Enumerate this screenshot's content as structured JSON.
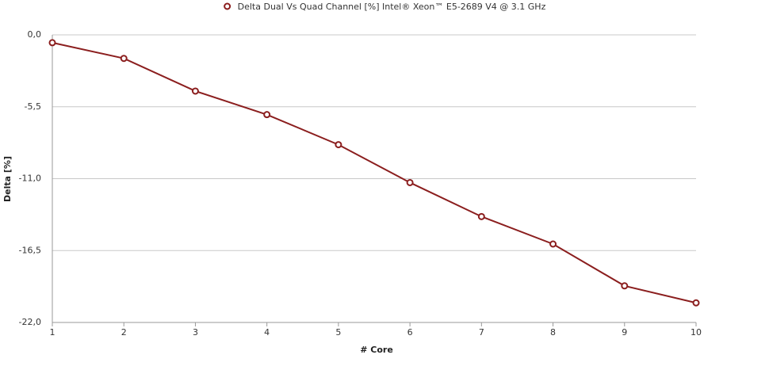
{
  "chart_data": {
    "type": "line",
    "x_label": "# Core",
    "y_label": "Delta [%]",
    "x": [
      1,
      2,
      3,
      4,
      5,
      6,
      7,
      8,
      9,
      10
    ],
    "xlim": [
      1,
      10
    ],
    "xticks": [
      1,
      2,
      3,
      4,
      5,
      6,
      7,
      8,
      9,
      10
    ],
    "ylim": [
      -22,
      0
    ],
    "yticks": [
      {
        "value": 0,
        "label": "0,0"
      },
      {
        "value": -5.5,
        "label": "-5,5"
      },
      {
        "value": -11,
        "label": "-11,0"
      },
      {
        "value": -16.5,
        "label": "-16,5"
      },
      {
        "value": -22,
        "label": "-22,0"
      }
    ],
    "grid": true,
    "series": [
      {
        "name": "Delta Dual Vs Quad Channel [%] Intel® Xeon™ E5-2689 V4 @ 3.1 GHz",
        "color": "#8b1e1e",
        "values": [
          -0.6,
          -1.8,
          -4.3,
          -6.1,
          -8.4,
          -11.3,
          -13.9,
          -16.0,
          -19.2,
          -20.5
        ]
      }
    ]
  }
}
